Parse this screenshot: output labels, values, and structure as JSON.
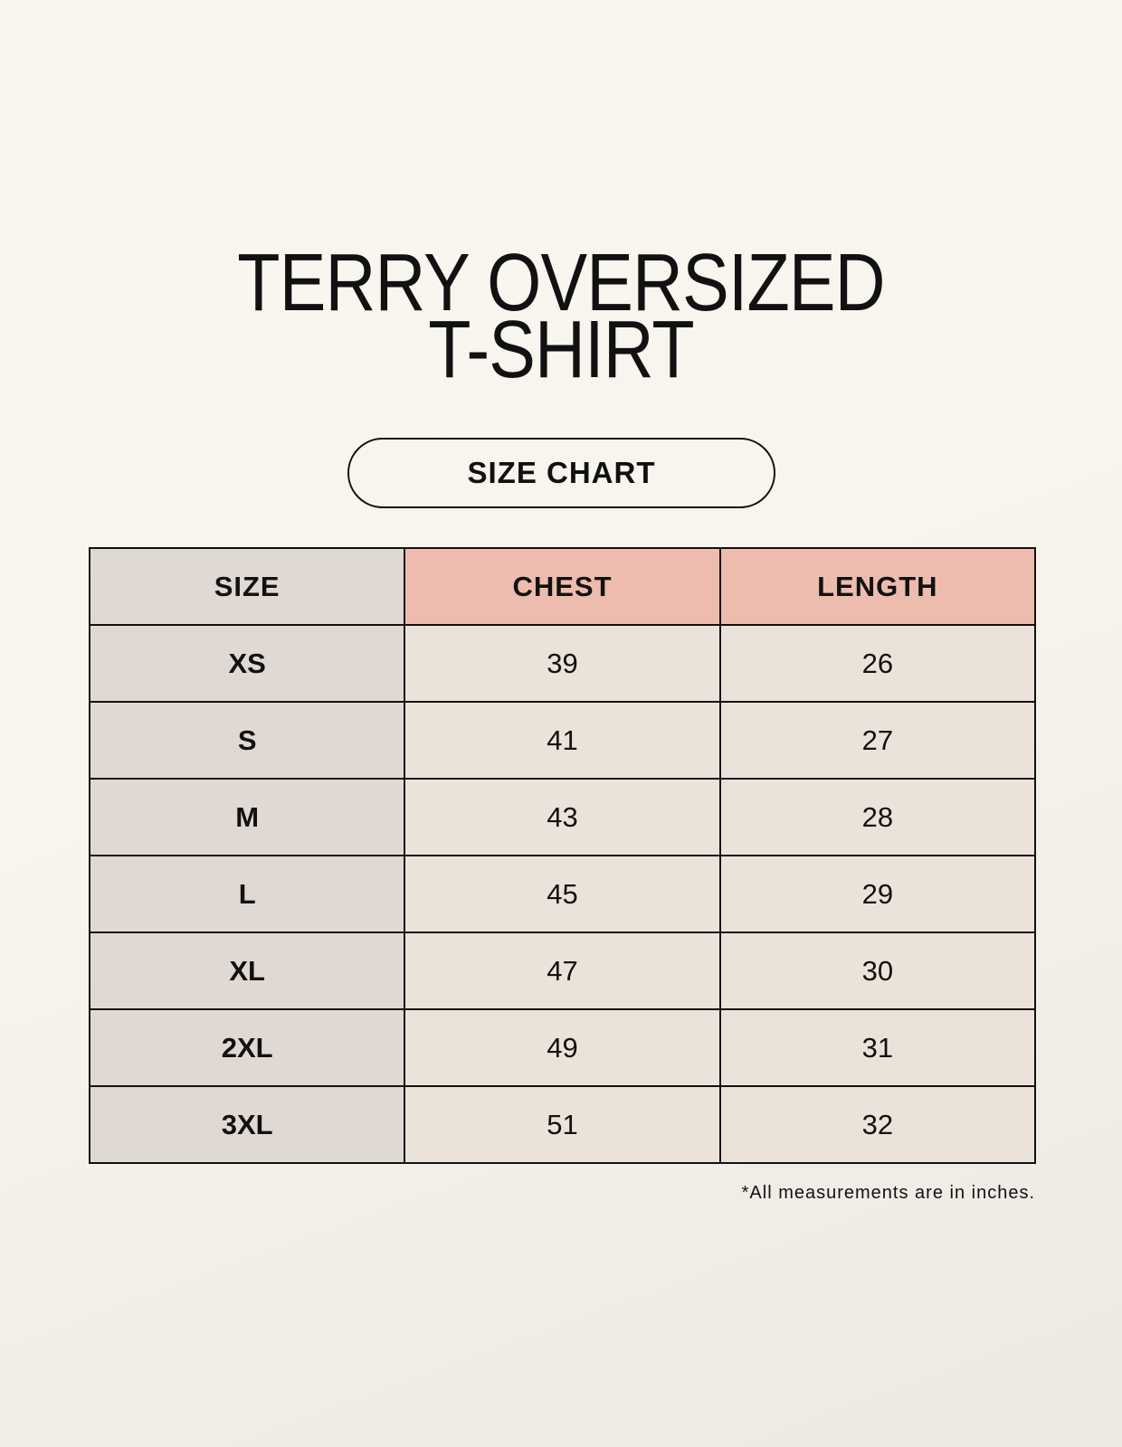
{
  "title": {
    "line1": "TERRY OVERSIZED",
    "line2": "T-SHIRT"
  },
  "subtitle_pill": "SIZE CHART",
  "colors": {
    "background": "#f8f5ee",
    "size_column": "#e0d9d3",
    "header_accent": "#eebcae",
    "cell": "#ebe3d9",
    "border": "#111111"
  },
  "table": {
    "headers": [
      "SIZE",
      "CHEST",
      "LENGTH"
    ],
    "rows": [
      {
        "size": "XS",
        "chest": "39",
        "length": "26"
      },
      {
        "size": "S",
        "chest": "41",
        "length": "27"
      },
      {
        "size": "M",
        "chest": "43",
        "length": "28"
      },
      {
        "size": "L",
        "chest": "45",
        "length": "29"
      },
      {
        "size": "XL",
        "chest": "47",
        "length": "30"
      },
      {
        "size": "2XL",
        "chest": "49",
        "length": "31"
      },
      {
        "size": "3XL",
        "chest": "51",
        "length": "32"
      }
    ]
  },
  "footnote": "*All measurements are in inches."
}
